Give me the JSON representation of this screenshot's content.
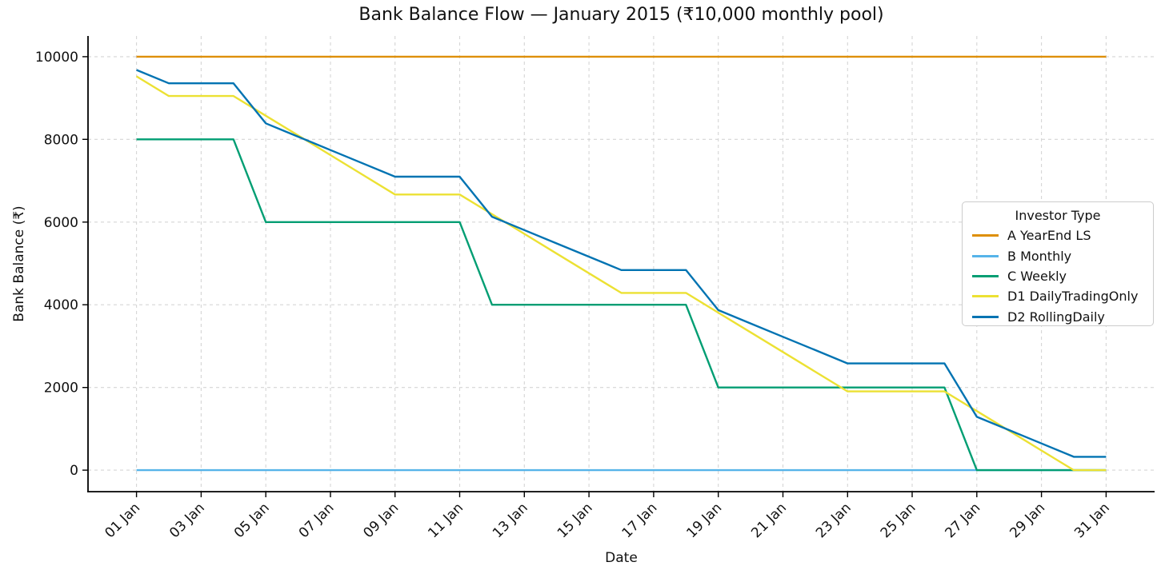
{
  "title": "Bank Balance Flow — January 2015 (₹10,000 monthly pool)",
  "chart_data": {
    "type": "line",
    "title": "Bank Balance Flow — January 2015 (₹10,000 monthly pool)",
    "xlabel": "Date",
    "ylabel": "Bank Balance (₹)",
    "legend_title": "Investor Type",
    "legend_position": "right",
    "grid": true,
    "grid_style": "dashed",
    "xlim": [
      -0.5,
      32.5
    ],
    "ylim": [
      -520,
      10500
    ],
    "x": [
      1,
      2,
      3,
      4,
      5,
      6,
      7,
      8,
      9,
      10,
      11,
      12,
      13,
      14,
      15,
      16,
      17,
      18,
      19,
      20,
      21,
      22,
      23,
      24,
      25,
      26,
      27,
      28,
      29,
      30,
      31
    ],
    "x_tick_positions": [
      1,
      3,
      5,
      7,
      9,
      11,
      13,
      15,
      17,
      19,
      21,
      23,
      25,
      27,
      29,
      31
    ],
    "x_tick_labels": [
      "01 Jan",
      "03 Jan",
      "05 Jan",
      "07 Jan",
      "09 Jan",
      "11 Jan",
      "13 Jan",
      "15 Jan",
      "17 Jan",
      "19 Jan",
      "21 Jan",
      "23 Jan",
      "25 Jan",
      "27 Jan",
      "29 Jan",
      "31 Jan"
    ],
    "y_ticks": [
      0,
      2000,
      4000,
      6000,
      8000,
      10000
    ],
    "y_tick_labels": [
      "0",
      "2000",
      "4000",
      "6000",
      "8000",
      "10000"
    ],
    "series": [
      {
        "name": "A YearEnd LS",
        "color": "#de8f05",
        "values": [
          10000,
          10000,
          10000,
          10000,
          10000,
          10000,
          10000,
          10000,
          10000,
          10000,
          10000,
          10000,
          10000,
          10000,
          10000,
          10000,
          10000,
          10000,
          10000,
          10000,
          10000,
          10000,
          10000,
          10000,
          10000,
          10000,
          10000,
          10000,
          10000,
          10000,
          10000
        ]
      },
      {
        "name": "B Monthly",
        "color": "#56b4e9",
        "values": [
          0,
          0,
          0,
          0,
          0,
          0,
          0,
          0,
          0,
          0,
          0,
          0,
          0,
          0,
          0,
          0,
          0,
          0,
          0,
          0,
          0,
          0,
          0,
          0,
          0,
          0,
          0,
          0,
          0,
          0,
          0
        ]
      },
      {
        "name": "C Weekly",
        "color": "#029e73",
        "values": [
          8000,
          8000,
          8000,
          8000,
          6000,
          6000,
          6000,
          6000,
          6000,
          6000,
          6000,
          4000,
          4000,
          4000,
          4000,
          4000,
          4000,
          4000,
          2000,
          2000,
          2000,
          2000,
          2000,
          2000,
          2000,
          2000,
          0,
          0,
          0,
          0,
          0
        ]
      },
      {
        "name": "D1 DailyTradingOnly",
        "color": "#ece133",
        "values": [
          9523.81,
          9047.62,
          9047.62,
          9047.62,
          8571.43,
          8095.24,
          7619.05,
          7142.86,
          6666.67,
          6666.67,
          6666.67,
          6190.48,
          5714.29,
          5238.1,
          4761.9,
          4285.71,
          4285.71,
          4285.71,
          3809.52,
          3333.33,
          2857.14,
          2380.95,
          1904.76,
          1904.76,
          1904.76,
          1904.76,
          1428.57,
          952.38,
          476.19,
          0,
          0
        ]
      },
      {
        "name": "D2 RollingDaily",
        "color": "#0173b2",
        "values": [
          9677.42,
          9354.84,
          9354.84,
          9354.84,
          8387.1,
          8064.52,
          7741.94,
          7419.35,
          7096.77,
          7096.77,
          7096.77,
          6129.03,
          5806.45,
          5483.87,
          5161.29,
          4838.71,
          4838.71,
          4838.71,
          3870.97,
          3548.39,
          3225.81,
          2903.23,
          2580.65,
          2580.65,
          2580.65,
          2580.65,
          1290.32,
          967.74,
          645.16,
          322.58,
          322.58
        ]
      }
    ]
  }
}
